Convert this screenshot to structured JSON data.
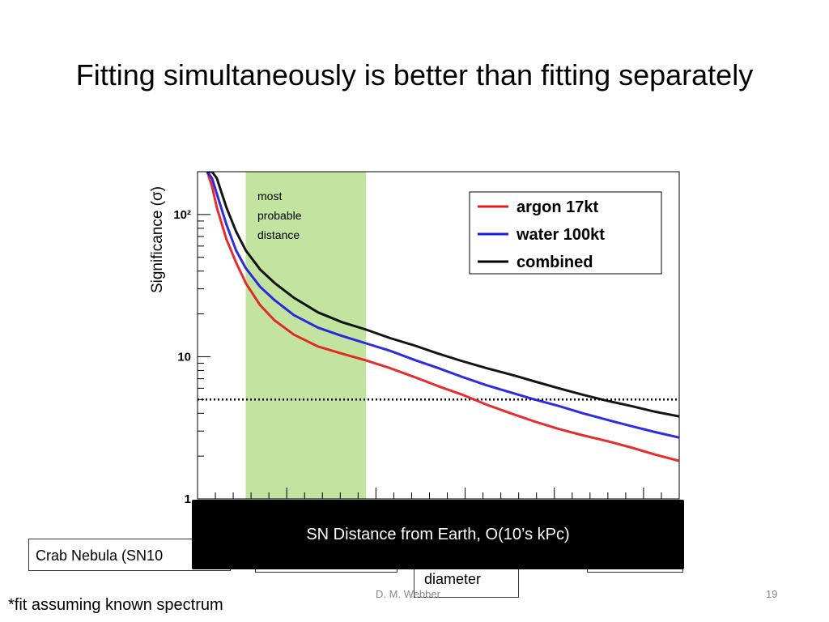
{
  "slide": {
    "title": "Fitting simultaneously is better than fitting separately",
    "footnote": "*fit assuming known spectrum",
    "author": "D. M. Webber",
    "page_number": "19",
    "callout_left": "Crab Nebula (SN10",
    "callout_middle": "diameter",
    "overlay_text": "SN Distance from Earth, O(10’s kPc)"
  },
  "chart_data": {
    "type": "line",
    "ylabel": "Significance (σ)",
    "yscale": "log",
    "ylim": [
      1,
      200
    ],
    "y_ticks": [
      {
        "value": 1,
        "label": "1"
      },
      {
        "value": 10,
        "label": "10"
      },
      {
        "value": 100,
        "label": "10²"
      }
    ],
    "x_ticks_visible": false,
    "xlim": [
      0,
      1
    ],
    "band": {
      "x_range": [
        0.1,
        0.35
      ],
      "color": "#c3e3a0",
      "label_lines": [
        "most",
        "probable",
        "distance"
      ]
    },
    "threshold_line": {
      "y": 5,
      "style": "dotted"
    },
    "legend": {
      "position": "top-right"
    },
    "series": [
      {
        "name": "argon 17kt",
        "color": "#e41a1c",
        "x": [
          0.02,
          0.03,
          0.04,
          0.06,
          0.08,
          0.1,
          0.13,
          0.16,
          0.2,
          0.25,
          0.3,
          0.35,
          0.4,
          0.45,
          0.5,
          0.55,
          0.6,
          0.65,
          0.7,
          0.75,
          0.8,
          0.85,
          0.9,
          0.95,
          1.0
        ],
        "values": [
          200,
          158,
          112,
          67,
          46,
          33,
          23,
          18,
          14.3,
          11.8,
          10.5,
          9.4,
          8.3,
          7.2,
          6.2,
          5.4,
          4.6,
          4.0,
          3.5,
          3.1,
          2.8,
          2.55,
          2.3,
          2.05,
          1.85
        ]
      },
      {
        "name": "water 100kt",
        "color": "#1a1adf",
        "x": [
          0.02,
          0.03,
          0.04,
          0.06,
          0.08,
          0.1,
          0.13,
          0.16,
          0.2,
          0.25,
          0.3,
          0.35,
          0.4,
          0.45,
          0.5,
          0.55,
          0.6,
          0.65,
          0.7,
          0.75,
          0.8,
          0.85,
          0.9,
          0.95,
          1.0
        ],
        "values": [
          200,
          180,
          140,
          85,
          56,
          42,
          31,
          25,
          19.6,
          16,
          14,
          12.4,
          11,
          9.5,
          8.3,
          7.2,
          6.3,
          5.6,
          5.0,
          4.5,
          4.0,
          3.6,
          3.25,
          2.95,
          2.7
        ]
      },
      {
        "name": "combined",
        "color": "#000000",
        "x": [
          0.02,
          0.03,
          0.04,
          0.06,
          0.08,
          0.1,
          0.13,
          0.16,
          0.2,
          0.25,
          0.3,
          0.35,
          0.4,
          0.45,
          0.5,
          0.55,
          0.6,
          0.65,
          0.7,
          0.75,
          0.8,
          0.85,
          0.9,
          0.95,
          1.0
        ],
        "values": [
          200,
          200,
          180,
          112,
          76,
          56,
          41,
          33,
          26,
          20.5,
          17.5,
          15.5,
          13.5,
          12,
          10.5,
          9.3,
          8.3,
          7.5,
          6.7,
          6.0,
          5.4,
          4.9,
          4.5,
          4.1,
          3.8
        ]
      }
    ]
  }
}
